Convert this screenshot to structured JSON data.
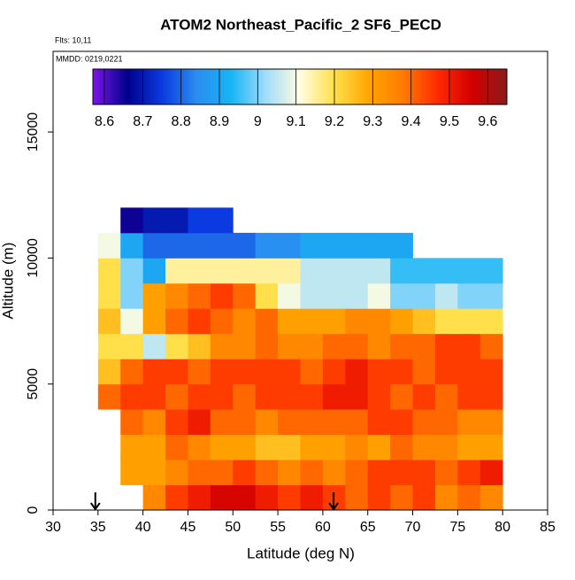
{
  "chart_data": {
    "type": "heatmap",
    "title": "ATOM2 Northeast_Pacific_2 SF6_PECD",
    "annotations": [
      "Flts: 10,11",
      "MMDD: 0219,0221"
    ],
    "xlabel": "Latitude (deg N)",
    "ylabel": "Altitude (m)",
    "xlim": [
      30,
      85
    ],
    "xticks": [
      30,
      35,
      40,
      45,
      50,
      55,
      60,
      65,
      70,
      75,
      80,
      85
    ],
    "ylim": [
      0,
      18200
    ],
    "yticks": [
      0,
      5000,
      10000,
      15000
    ],
    "x_edges": [
      35,
      37.5,
      40,
      42.5,
      45,
      47.5,
      50,
      52.5,
      55,
      57.5,
      60,
      62.5,
      65,
      67.5,
      70,
      72.5,
      75,
      77.5,
      80
    ],
    "y_edges": [
      0,
      1000,
      2000,
      3000,
      4000,
      5000,
      6000,
      7000,
      8000,
      9000,
      10000,
      11000,
      12000
    ],
    "z": [
      [
        null,
        null,
        9.35,
        9.45,
        9.5,
        9.55,
        9.55,
        9.5,
        9.45,
        9.5,
        9.45,
        9.4,
        9.45,
        9.4,
        9.45,
        9.35,
        9.4,
        9.35
      ],
      [
        null,
        9.3,
        9.3,
        9.35,
        9.4,
        9.4,
        9.45,
        9.4,
        9.35,
        9.4,
        9.35,
        9.4,
        9.45,
        9.45,
        9.45,
        9.4,
        9.45,
        9.5
      ],
      [
        null,
        9.3,
        9.3,
        9.4,
        9.35,
        9.3,
        9.3,
        9.25,
        9.25,
        9.3,
        9.3,
        9.35,
        9.3,
        9.4,
        9.35,
        9.35,
        9.3,
        9.3
      ],
      [
        null,
        9.4,
        9.35,
        9.45,
        9.5,
        9.4,
        9.4,
        9.35,
        9.4,
        9.4,
        9.4,
        9.4,
        9.45,
        9.45,
        9.4,
        9.4,
        9.35,
        9.35
      ],
      [
        9.4,
        9.45,
        9.45,
        9.4,
        9.45,
        9.45,
        9.4,
        9.45,
        9.45,
        9.45,
        9.5,
        9.5,
        9.45,
        9.4,
        9.45,
        9.4,
        9.45,
        9.45
      ],
      [
        9.25,
        9.4,
        9.45,
        9.45,
        9.4,
        9.45,
        9.45,
        9.45,
        9.45,
        9.4,
        9.45,
        9.5,
        9.45,
        9.45,
        9.4,
        9.45,
        9.45,
        9.45
      ],
      [
        9.2,
        9.2,
        9.05,
        9.2,
        9.25,
        9.35,
        9.35,
        9.4,
        9.35,
        9.35,
        9.4,
        9.4,
        9.35,
        9.4,
        9.4,
        9.45,
        9.45,
        9.4
      ],
      [
        9.25,
        9.1,
        9.3,
        9.4,
        9.45,
        9.4,
        9.35,
        9.4,
        9.3,
        9.3,
        9.3,
        9.35,
        9.35,
        9.3,
        9.25,
        9.2,
        9.2,
        9.2
      ],
      [
        9.2,
        9.0,
        9.3,
        9.35,
        9.4,
        9.45,
        9.4,
        9.2,
        9.1,
        9.05,
        9.05,
        9.05,
        9.1,
        9.0,
        9.0,
        9.05,
        9.0,
        9.0
      ],
      [
        9.2,
        9.0,
        8.9,
        9.15,
        9.15,
        9.15,
        9.15,
        9.15,
        9.15,
        9.05,
        9.05,
        9.05,
        9.05,
        8.95,
        8.95,
        8.95,
        8.95,
        8.95
      ],
      [
        9.1,
        8.9,
        8.8,
        8.8,
        8.8,
        8.8,
        8.8,
        8.85,
        8.85,
        8.9,
        8.9,
        8.9,
        8.9,
        8.9,
        null,
        null,
        null,
        null
      ],
      [
        null,
        8.65,
        8.7,
        8.7,
        8.75,
        8.75,
        null,
        null,
        null,
        null,
        null,
        null,
        null,
        null,
        null,
        null,
        null,
        null
      ]
    ],
    "crange": [
      8.57,
      9.65
    ],
    "cticks": [
      8.6,
      8.7,
      8.8,
      8.9,
      9.0,
      9.1,
      9.2,
      9.3,
      9.4,
      9.5,
      9.6
    ],
    "colorscale": [
      "#7b16e8",
      "#00008b",
      "#0a3ae0",
      "#2a8cf0",
      "#17b4f5",
      "#9fdcfa",
      "#fffde0",
      "#ffe04a",
      "#ffa500",
      "#ff7a00",
      "#ff2a00",
      "#d10000",
      "#8b1a1a"
    ],
    "markers_x": [
      34.7,
      61.2
    ]
  }
}
